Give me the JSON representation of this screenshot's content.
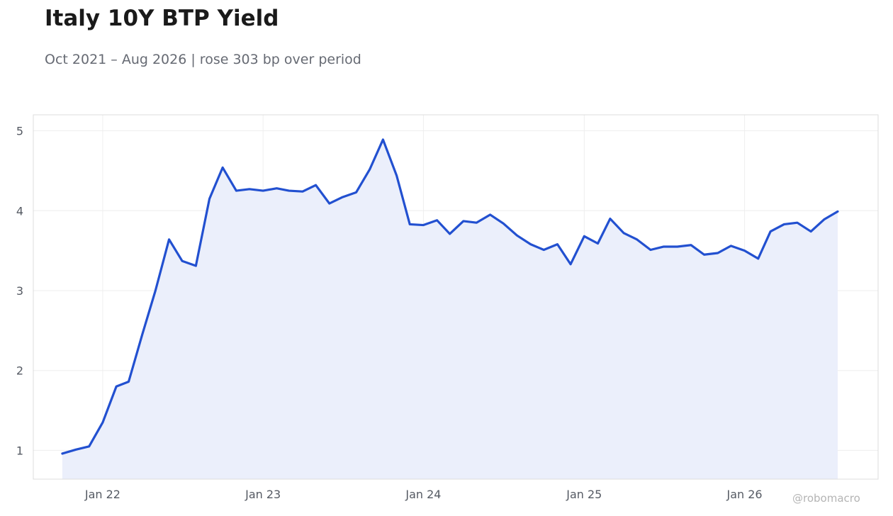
{
  "title": "Italy 10Y BTP Yield",
  "subtitle": "Oct 2021 – Aug 2026 | rose 303 bp over period",
  "watermark": "@robomacro",
  "colors": {
    "line": "#2250d0",
    "fill": "#ebeffb",
    "grid": "#eeeeee",
    "frame": "#dcdcdc"
  },
  "chart_data": {
    "type": "area",
    "title": "Italy 10Y BTP Yield",
    "subtitle": "Oct 2021 – Aug 2026 | rose 303 bp over period",
    "xlabel": "",
    "ylabel": "",
    "grid": true,
    "legend": "none",
    "ylim": [
      0.64,
      5.2
    ],
    "xlim": [
      "2021-07-27",
      "2026-11-01"
    ],
    "x_ticks": [
      {
        "date": "2022-01-01",
        "label": "Jan 22"
      },
      {
        "date": "2023-01-01",
        "label": "Jan 23"
      },
      {
        "date": "2024-01-01",
        "label": "Jan 24"
      },
      {
        "date": "2025-01-01",
        "label": "Jan 25"
      },
      {
        "date": "2026-01-01",
        "label": "Jan 26"
      }
    ],
    "y_ticks": [
      1,
      2,
      3,
      4,
      5
    ],
    "series": [
      {
        "x": [
          "2021-10-01",
          "2021-11-01",
          "2021-12-01",
          "2022-01-01",
          "2022-02-01",
          "2022-03-01",
          "2022-04-01",
          "2022-05-01",
          "2022-06-01",
          "2022-07-01",
          "2022-08-01",
          "2022-09-01",
          "2022-10-01",
          "2022-11-01",
          "2022-12-01",
          "2023-01-01",
          "2023-02-01",
          "2023-03-01",
          "2023-04-01",
          "2023-05-01",
          "2023-06-01",
          "2023-07-01",
          "2023-08-01",
          "2023-09-01",
          "2023-10-01",
          "2023-11-01",
          "2023-12-01",
          "2024-01-01",
          "2024-02-01",
          "2024-03-01",
          "2024-04-01",
          "2024-05-01",
          "2024-06-01",
          "2024-07-01",
          "2024-08-01",
          "2024-09-01",
          "2024-10-01",
          "2024-11-01",
          "2024-12-01",
          "2025-01-01",
          "2025-02-01",
          "2025-03-01",
          "2025-04-01",
          "2025-05-01",
          "2025-06-01",
          "2025-07-01",
          "2025-08-01",
          "2025-09-01",
          "2025-10-01",
          "2025-11-01",
          "2025-12-01",
          "2026-01-01",
          "2026-02-01",
          "2026-03-01",
          "2026-04-01",
          "2026-05-01",
          "2026-06-01",
          "2026-07-01",
          "2026-08-01"
        ],
        "values": [
          0.96,
          1.01,
          1.05,
          1.35,
          1.8,
          1.86,
          2.45,
          3.0,
          3.64,
          3.37,
          3.31,
          4.15,
          4.54,
          4.25,
          4.27,
          4.25,
          4.28,
          4.25,
          4.24,
          4.32,
          4.09,
          4.17,
          4.23,
          4.52,
          4.89,
          4.44,
          3.83,
          3.82,
          3.88,
          3.71,
          3.87,
          3.85,
          3.95,
          3.84,
          3.69,
          3.58,
          3.51,
          3.58,
          3.33,
          3.68,
          3.59,
          3.9,
          3.72,
          3.64,
          3.51,
          3.55,
          3.55,
          3.57,
          3.45,
          3.47,
          3.56,
          3.5,
          3.4,
          3.74,
          3.83,
          3.85,
          3.74,
          3.89,
          3.99
        ]
      }
    ]
  }
}
